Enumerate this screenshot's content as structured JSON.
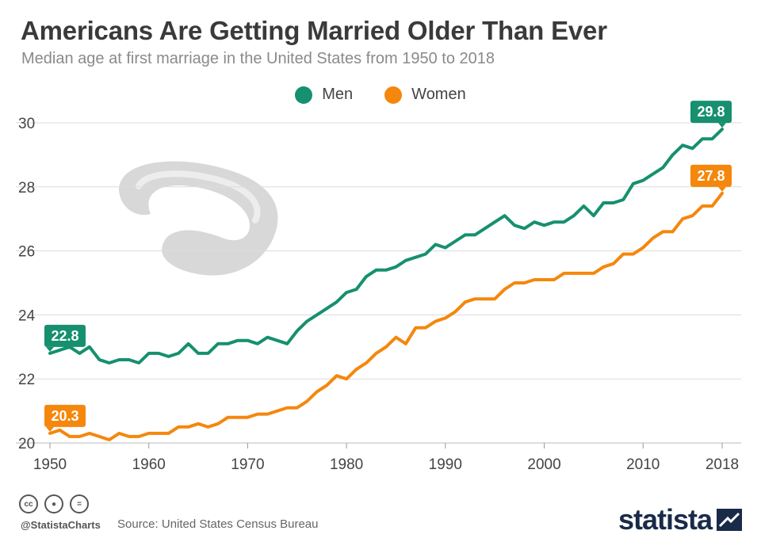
{
  "header": {
    "title": "Americans Are Getting Married Older Than Ever",
    "subtitle": "Median age at first marriage in the United States from 1950 to 2018"
  },
  "colors": {
    "men": "#16906f",
    "women": "#f5870c",
    "grid": "#dcdcdc",
    "axis": "#bbbbbb",
    "text": "#444444"
  },
  "footer": {
    "handle": "@StatistaCharts",
    "source": "Source: United States Census Bureau",
    "brand": "statista",
    "icons": [
      "cc-icon",
      "attribution-icon",
      "no-derivatives-icon"
    ]
  },
  "chart_data": {
    "type": "line",
    "title": "Americans Are Getting Married Older Than Ever",
    "subtitle": "Median age at first marriage in the United States from 1950 to 2018",
    "xlabel": "",
    "ylabel": "",
    "xlim": [
      1950,
      2018
    ],
    "ylim": [
      20,
      30
    ],
    "x_ticks": [
      1950,
      1960,
      1970,
      1980,
      1990,
      2000,
      2010,
      2018
    ],
    "y_ticks": [
      20,
      22,
      24,
      26,
      28,
      30
    ],
    "grid": true,
    "legend": "top-center",
    "x": [
      1950,
      1951,
      1952,
      1953,
      1954,
      1955,
      1956,
      1957,
      1958,
      1959,
      1960,
      1961,
      1962,
      1963,
      1964,
      1965,
      1966,
      1967,
      1968,
      1969,
      1970,
      1971,
      1972,
      1973,
      1974,
      1975,
      1976,
      1977,
      1978,
      1979,
      1980,
      1981,
      1982,
      1983,
      1984,
      1985,
      1986,
      1987,
      1988,
      1989,
      1990,
      1991,
      1992,
      1993,
      1994,
      1995,
      1996,
      1997,
      1998,
      1999,
      2000,
      2001,
      2002,
      2003,
      2004,
      2005,
      2006,
      2007,
      2008,
      2009,
      2010,
      2011,
      2012,
      2013,
      2014,
      2015,
      2016,
      2017,
      2018
    ],
    "series": [
      {
        "name": "Men",
        "color": "#16906f",
        "values": [
          22.8,
          22.9,
          23.0,
          22.8,
          23.0,
          22.6,
          22.5,
          22.6,
          22.6,
          22.5,
          22.8,
          22.8,
          22.7,
          22.8,
          23.1,
          22.8,
          22.8,
          23.1,
          23.1,
          23.2,
          23.2,
          23.1,
          23.3,
          23.2,
          23.1,
          23.5,
          23.8,
          24.0,
          24.2,
          24.4,
          24.7,
          24.8,
          25.2,
          25.4,
          25.4,
          25.5,
          25.7,
          25.8,
          25.9,
          26.2,
          26.1,
          26.3,
          26.5,
          26.5,
          26.7,
          26.9,
          27.1,
          26.8,
          26.7,
          26.9,
          26.8,
          26.9,
          26.9,
          27.1,
          27.4,
          27.1,
          27.5,
          27.5,
          27.6,
          28.1,
          28.2,
          28.4,
          28.6,
          29.0,
          29.3,
          29.2,
          29.5,
          29.5,
          29.8
        ],
        "first_label": "22.8",
        "last_label": "29.8"
      },
      {
        "name": "Women",
        "color": "#f5870c",
        "values": [
          20.3,
          20.4,
          20.2,
          20.2,
          20.3,
          20.2,
          20.1,
          20.3,
          20.2,
          20.2,
          20.3,
          20.3,
          20.3,
          20.5,
          20.5,
          20.6,
          20.5,
          20.6,
          20.8,
          20.8,
          20.8,
          20.9,
          20.9,
          21.0,
          21.1,
          21.1,
          21.3,
          21.6,
          21.8,
          22.1,
          22.0,
          22.3,
          22.5,
          22.8,
          23.0,
          23.3,
          23.1,
          23.6,
          23.6,
          23.8,
          23.9,
          24.1,
          24.4,
          24.5,
          24.5,
          24.5,
          24.8,
          25.0,
          25.0,
          25.1,
          25.1,
          25.1,
          25.3,
          25.3,
          25.3,
          25.3,
          25.5,
          25.6,
          25.9,
          25.9,
          26.1,
          26.4,
          26.6,
          26.6,
          27.0,
          27.1,
          27.4,
          27.4,
          27.8
        ],
        "first_label": "20.3",
        "last_label": "27.8"
      }
    ]
  }
}
